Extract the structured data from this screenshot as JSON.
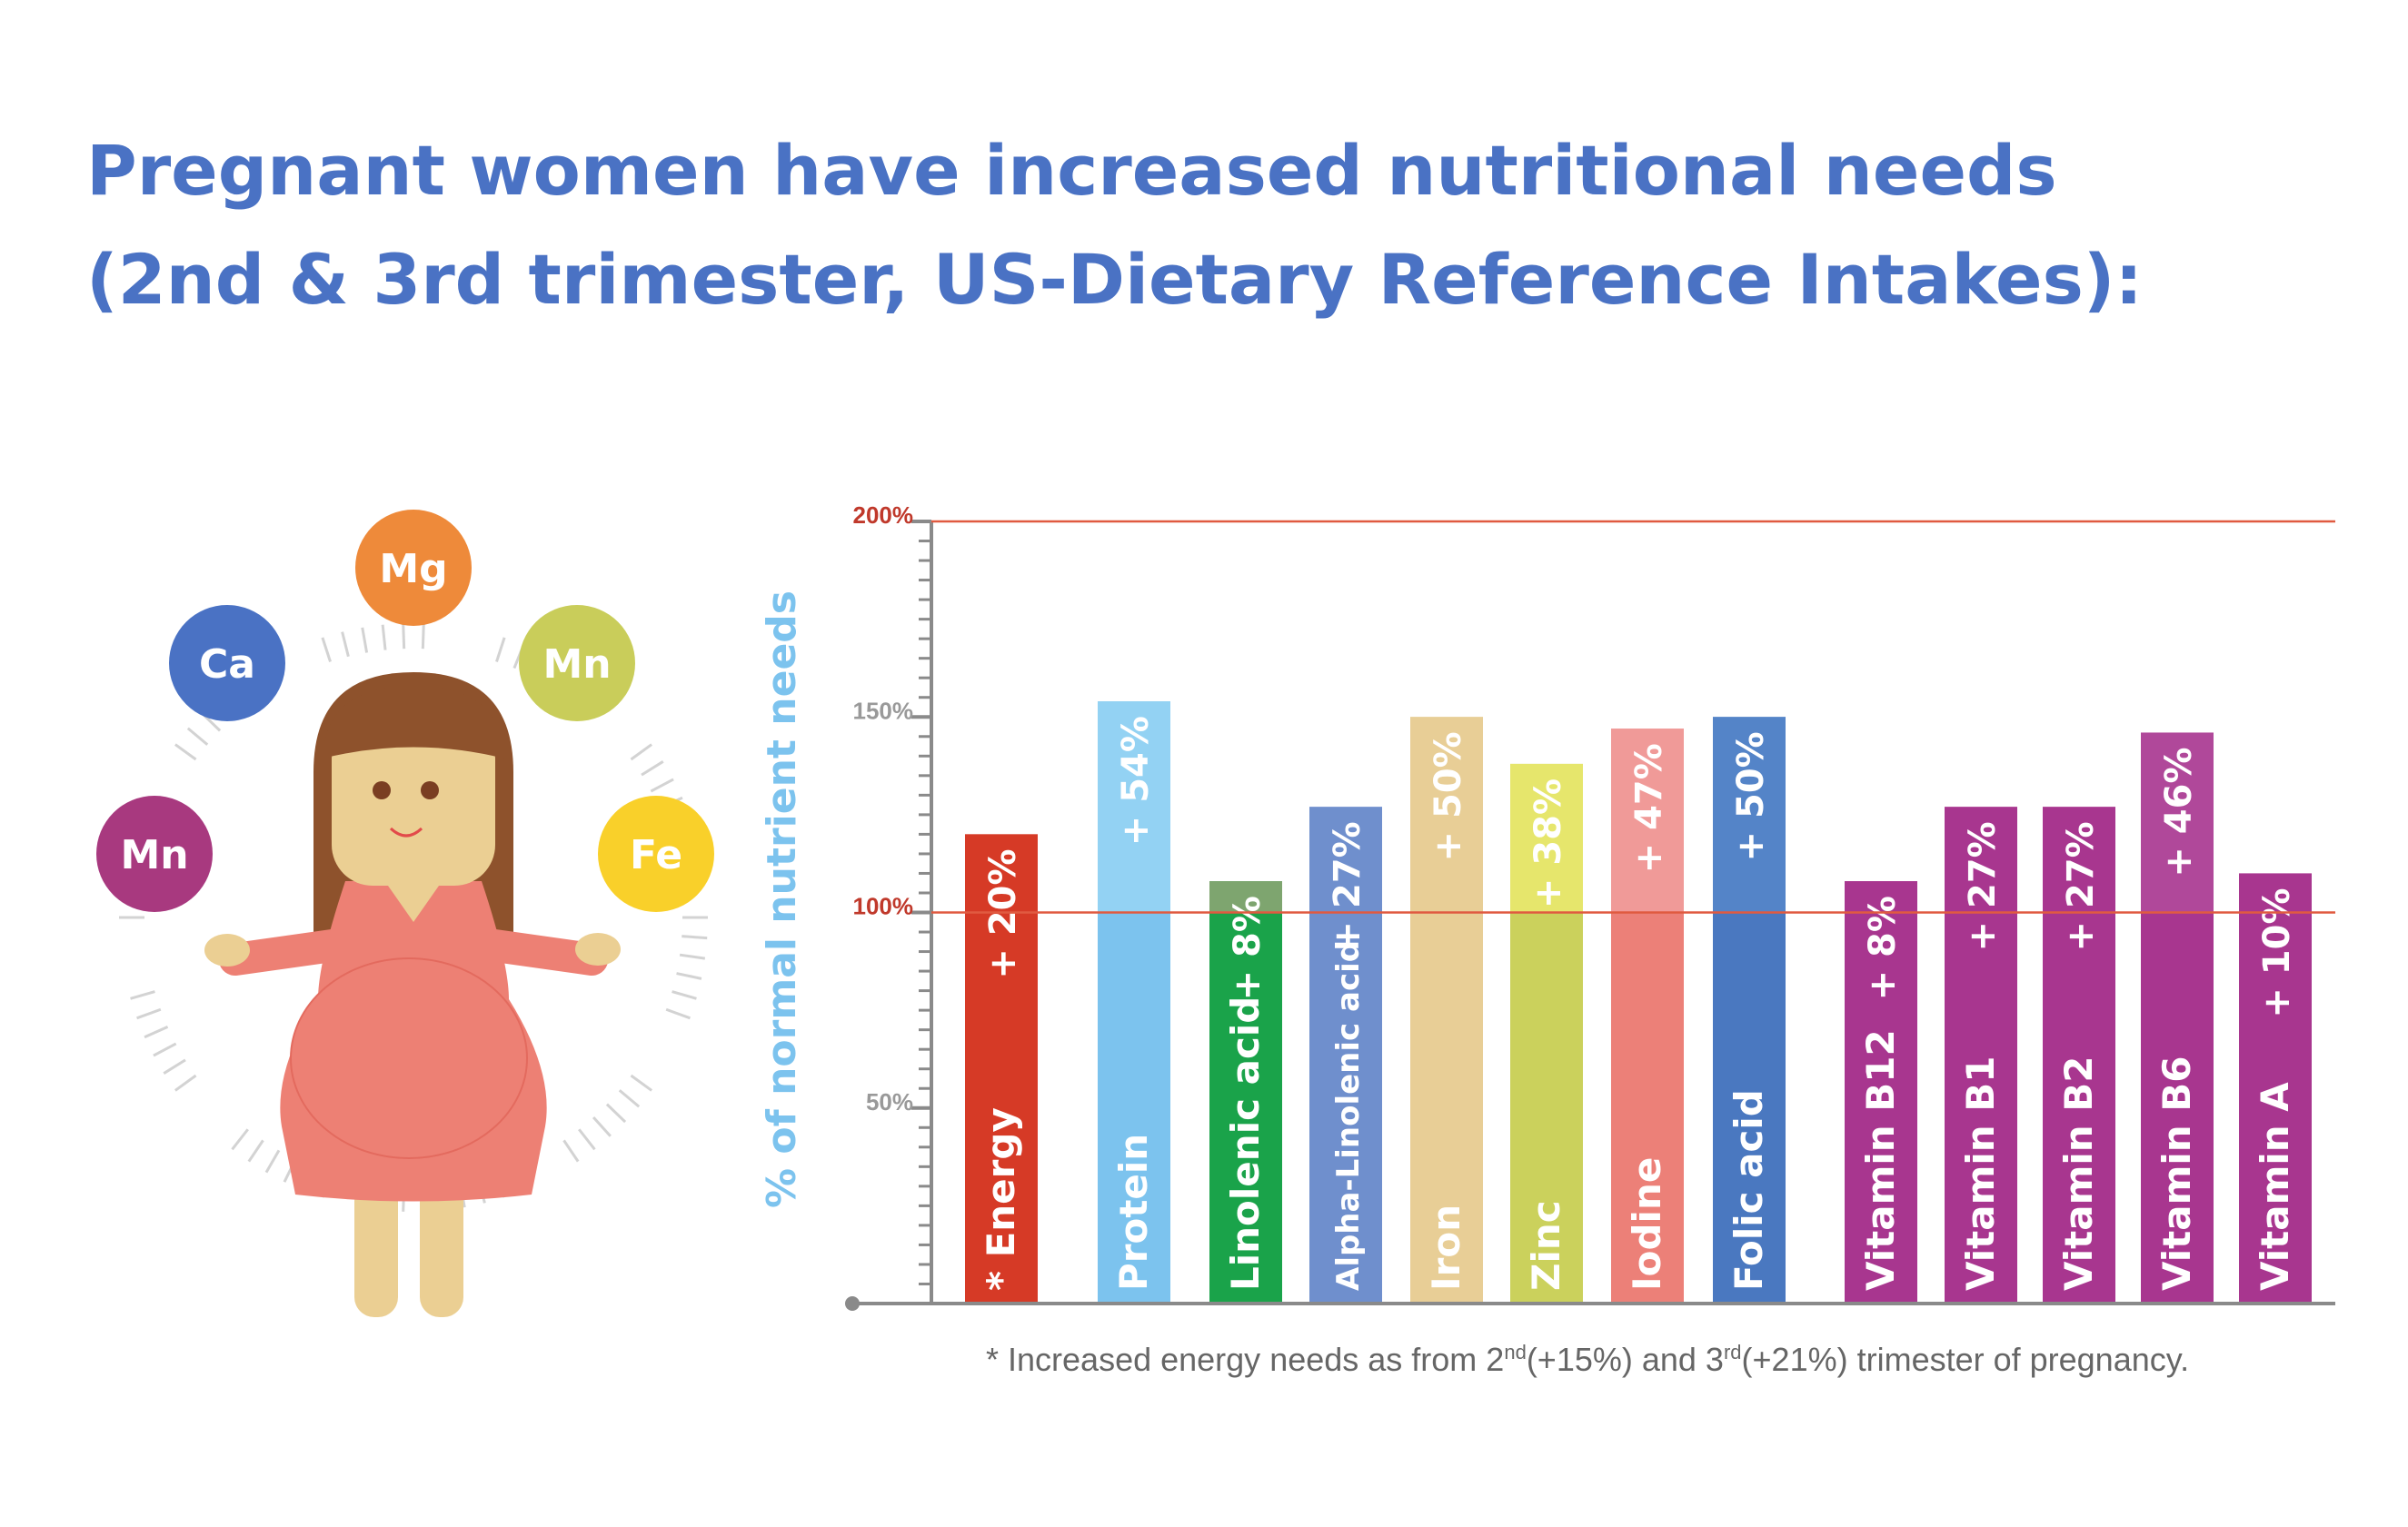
{
  "title_line1": "Pregnant women have increased nutritional needs",
  "title_line2": "(2nd & 3rd trimester, US-Dietary Reference Intakes):",
  "minerals": [
    {
      "label": "Mg",
      "color": "#ee8a3a"
    },
    {
      "label": "Ca",
      "color": "#4a72c4"
    },
    {
      "label": "Mn",
      "color": "#c9cd5a"
    },
    {
      "label": "Mn",
      "color": "#a8397f"
    },
    {
      "label": "Fe",
      "color": "#f9d02a"
    }
  ],
  "footnote": {
    "prefix": "* Increased energy needs as from 2",
    "sup1": "nd",
    "middle": "(+15%) and 3",
    "sup2": "rd",
    "suffix": "(+21%) trimester of pregnancy."
  },
  "chart_data": {
    "type": "bar",
    "ylabel": "% of normal nutrient needs",
    "ylim": [
      0,
      200
    ],
    "y_ticks": [
      {
        "value": 200,
        "label": "200%",
        "color": "#c0392b"
      },
      {
        "value": 150,
        "label": "150%",
        "color": "#999999"
      },
      {
        "value": 100,
        "label": "100%",
        "color": "#c0392b"
      },
      {
        "value": 50,
        "label": "50%",
        "color": "#999999"
      }
    ],
    "reference_lines": [
      {
        "value": 200,
        "color": "#e05a40"
      },
      {
        "value": 100,
        "color": "#e05a40"
      }
    ],
    "categories": [
      "* Energy",
      "Protein",
      "Linolenic acid",
      "Alpha-Linolenic acid",
      "Iron",
      "Zinc",
      "Iodine",
      "Folic acid",
      "Vitamin B12",
      "Vitamin B1",
      "Vitamin B2",
      "Vitamin B6",
      "Vitamin A"
    ],
    "values": [
      120,
      154,
      108,
      127,
      150,
      138,
      147,
      150,
      108,
      127,
      127,
      146,
      110
    ],
    "value_labels": [
      "+ 20%",
      "+ 54%",
      "+ 8%",
      "+ 27%",
      "+ 50%",
      "+ 38%",
      "+ 47%",
      "+ 50%",
      "+ 8%",
      "+ 27%",
      "+ 27%",
      "+ 46%",
      "+ 10%"
    ],
    "colors": [
      "#d63a26",
      "#7cc3ee",
      "#1aa34a",
      "#6f8fcd",
      "#e8ce96",
      "#cbd15c",
      "#ec8078",
      "#4a78c0",
      "#a8368f",
      "#a8368f",
      "#a8368f",
      "#a8368f",
      "#a8368f"
    ],
    "top_colors": [
      "#d63a26",
      "#93d2f3",
      "#7ea56f",
      "#6f8fcd",
      "#e8ce96",
      "#e6e66c",
      "#f09a98",
      "#5484c8",
      "#a8368f",
      "#a8368f",
      "#a8368f",
      "#b0489a",
      "#a8368f"
    ],
    "grid": false
  }
}
